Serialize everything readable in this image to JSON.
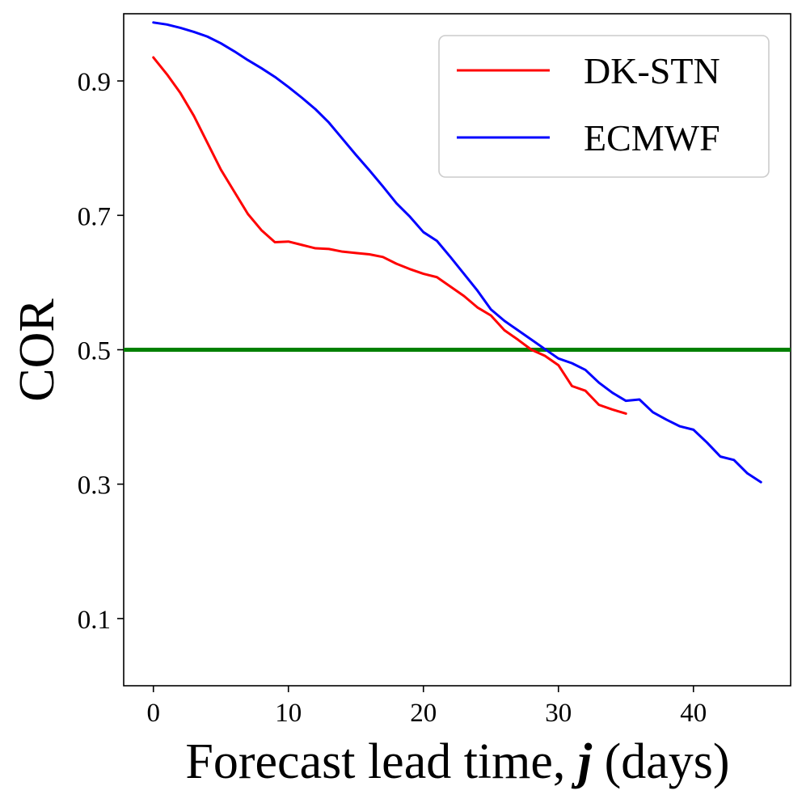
{
  "chart_data": {
    "type": "line",
    "title": "",
    "xlabel_prefix": "Forecast lead time, ",
    "xlabel_var": "j",
    "xlabel_suffix": " (days)",
    "ylabel": "COR",
    "xlim": [
      -2.2,
      47.2
    ],
    "ylim": [
      0.0,
      1.0
    ],
    "xticks": [
      0,
      10,
      20,
      30,
      40
    ],
    "yticks": [
      0.1,
      0.3,
      0.5,
      0.7,
      0.9
    ],
    "xtick_labels": [
      "0",
      "10",
      "20",
      "30",
      "40"
    ],
    "ytick_labels": [
      "0.1",
      "0.3",
      "0.5",
      "0.7",
      "0.9"
    ],
    "grid": false,
    "legend_position": "top-right",
    "reference_line": {
      "y": 0.5,
      "color": "#008000"
    },
    "series": [
      {
        "name": "DK-STN",
        "color": "#ff0000",
        "x": [
          0,
          1,
          2,
          3,
          4,
          5,
          6,
          7,
          8,
          9,
          10,
          11,
          12,
          13,
          14,
          15,
          16,
          17,
          18,
          19,
          20,
          21,
          22,
          23,
          24,
          25,
          26,
          27,
          28,
          29,
          30,
          31,
          32,
          33,
          34,
          35
        ],
        "y": [
          0.935,
          0.91,
          0.882,
          0.848,
          0.808,
          0.768,
          0.735,
          0.702,
          0.678,
          0.66,
          0.661,
          0.656,
          0.651,
          0.65,
          0.646,
          0.644,
          0.642,
          0.638,
          0.628,
          0.62,
          0.613,
          0.608,
          0.594,
          0.58,
          0.563,
          0.551,
          0.529,
          0.515,
          0.5,
          0.491,
          0.477,
          0.446,
          0.439,
          0.418,
          0.411,
          0.405
        ]
      },
      {
        "name": "ECMWF",
        "color": "#0000ff",
        "x": [
          0,
          1,
          2,
          3,
          4,
          5,
          6,
          7,
          8,
          9,
          10,
          11,
          12,
          13,
          14,
          15,
          16,
          17,
          18,
          19,
          20,
          21,
          22,
          23,
          24,
          25,
          26,
          27,
          28,
          29,
          30,
          31,
          32,
          33,
          34,
          35,
          36,
          37,
          38,
          39,
          40,
          41,
          42,
          43,
          44,
          45
        ],
        "y": [
          0.987,
          0.984,
          0.979,
          0.973,
          0.966,
          0.956,
          0.944,
          0.931,
          0.919,
          0.906,
          0.891,
          0.875,
          0.858,
          0.838,
          0.814,
          0.79,
          0.767,
          0.743,
          0.718,
          0.698,
          0.675,
          0.662,
          0.638,
          0.613,
          0.588,
          0.56,
          0.543,
          0.529,
          0.515,
          0.501,
          0.487,
          0.48,
          0.47,
          0.451,
          0.436,
          0.424,
          0.426,
          0.407,
          0.396,
          0.386,
          0.381,
          0.362,
          0.341,
          0.336,
          0.316,
          0.303
        ]
      }
    ]
  }
}
